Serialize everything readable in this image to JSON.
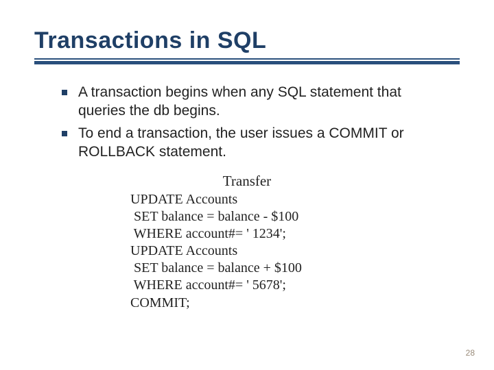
{
  "title": "Transactions in SQL",
  "title_color": "#1f3f66",
  "rule_color": "#2a4f7c",
  "bullet_marker_color": "#1f3f66",
  "title_fontsize": 34,
  "bullet_fontsize": 21,
  "code_fontsize": 20,
  "bullets": [
    "A transaction begins when any SQL statement that queries the db begins.",
    "To end a transaction, the user issues a COMMIT or ROLLBACK statement."
  ],
  "code": {
    "heading": "Transfer",
    "lines": [
      "UPDATE Accounts",
      " SET balance = balance - $100",
      " WHERE account#= ' 1234';",
      "UPDATE Accounts",
      " SET balance = balance + $100",
      " WHERE account#= ' 5678';",
      "COMMIT;"
    ]
  },
  "page_number": "28",
  "page_number_color": "#9a8b7a",
  "background_color": "#ffffff"
}
